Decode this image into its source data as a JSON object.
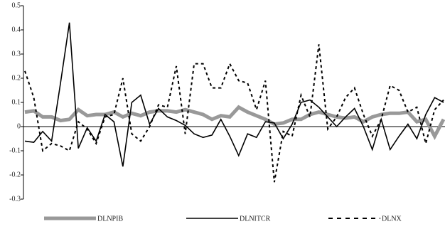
{
  "chart_data": {
    "type": "line",
    "categories": [
      null,
      null,
      null,
      null,
      null,
      null,
      null,
      null,
      null,
      null,
      null,
      null,
      null,
      null,
      null,
      null,
      null,
      null,
      null,
      null,
      null,
      null,
      null,
      null,
      null,
      null,
      null,
      null,
      null,
      null,
      null,
      null,
      null,
      null,
      null,
      null,
      null,
      null,
      null,
      null,
      null,
      null,
      null,
      null,
      null,
      null,
      null,
      null
    ],
    "series": [
      {
        "name": "DLNPIB",
        "color": "#999999",
        "width": 5,
        "dash": false,
        "values": [
          0.06,
          0.065,
          0.04,
          0.04,
          0.025,
          0.03,
          0.07,
          0.045,
          0.05,
          0.05,
          0.06,
          0.04,
          0.055,
          0.045,
          0.06,
          0.065,
          0.065,
          0.06,
          0.07,
          0.06,
          0.05,
          0.03,
          0.045,
          0.04,
          0.08,
          0.06,
          0.045,
          0.03,
          0.01,
          0.015,
          0.03,
          0.03,
          0.05,
          0.06,
          0.05,
          0.04,
          0.035,
          0.04,
          0.02,
          0.04,
          0.05,
          0.055,
          0.055,
          0.06,
          0.02,
          0.03,
          -0.04,
          0.03
        ]
      },
      {
        "name": "DLNITCR",
        "color": "#000000",
        "width": 1.6,
        "dash": false,
        "values": [
          -0.06,
          -0.065,
          -0.02,
          -0.06,
          0.18,
          0.43,
          -0.09,
          -0.005,
          -0.06,
          0.05,
          0.02,
          -0.165,
          0.1,
          0.13,
          0.01,
          0.075,
          0.04,
          0.025,
          0.005,
          -0.03,
          -0.045,
          -0.035,
          0.03,
          -0.04,
          -0.12,
          -0.03,
          -0.045,
          0.02,
          0.015,
          -0.05,
          0.01,
          0.1,
          0.11,
          0.08,
          0.04,
          0,
          0.04,
          0.075,
          0,
          -0.095,
          0.03,
          -0.095,
          -0.04,
          0.01,
          -0.05,
          0.05,
          0.12,
          0.1
        ]
      },
      {
        "name": "DLNX",
        "color": "#000000",
        "width": 2,
        "dash": true,
        "values": [
          0.23,
          0.12,
          -0.1,
          -0.07,
          -0.08,
          -0.1,
          0.02,
          -0.01,
          -0.07,
          0.04,
          0.05,
          0.2,
          -0.03,
          -0.06,
          0,
          0.09,
          0.08,
          0.25,
          -0.03,
          0.26,
          0.26,
          0.16,
          0.16,
          0.26,
          0.19,
          0.18,
          0.07,
          0.19,
          -0.23,
          -0.02,
          -0.04,
          0.13,
          0.04,
          0.34,
          -0.01,
          0.04,
          0.12,
          0.16,
          0.05,
          -0.04,
          0.03,
          0.17,
          0.15,
          0.06,
          0.08,
          -0.07,
          0.07,
          0.11
        ]
      }
    ],
    "ylim": [
      -0.3,
      0.5
    ],
    "yticks": [
      -0.3,
      -0.2,
      -0.1,
      0,
      0.1,
      0.2,
      0.3,
      0.4,
      0.5
    ],
    "grid": false,
    "legend": "bottom"
  }
}
